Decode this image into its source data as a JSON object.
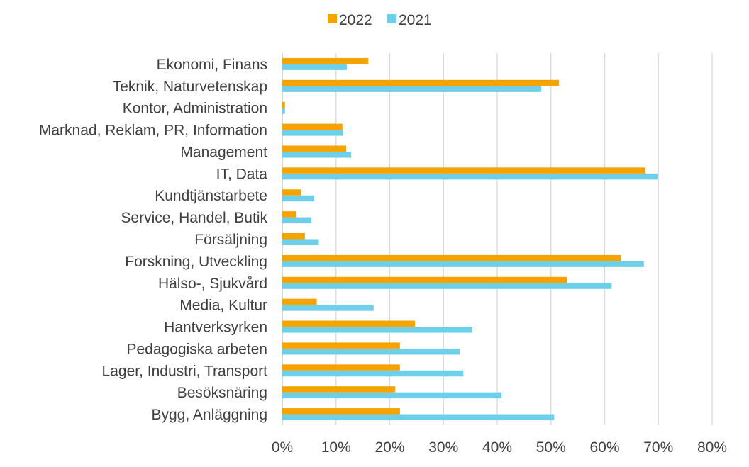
{
  "chart_data": {
    "type": "bar",
    "orientation": "horizontal",
    "title": "",
    "xlabel": "",
    "ylabel": "",
    "xlim": [
      0,
      80
    ],
    "x_ticks": [
      "0%",
      "10%",
      "20%",
      "30%",
      "40%",
      "50%",
      "60%",
      "70%",
      "80%"
    ],
    "grid": true,
    "legend_position": "top",
    "categories": [
      "Ekonomi, Finans",
      "Teknik, Naturvetenskap",
      "Kontor, Administration",
      "Marknad, Reklam, PR, Information",
      "Management",
      "IT, Data",
      "Kundtjänstarbete",
      "Service, Handel, Butik",
      "Försäljning",
      "Forskning, Utveckling",
      "Hälso-, Sjukvård",
      "Media, Kultur",
      "Hantverksyrken",
      "Pedagogiska arbeten",
      "Lager, Industri, Transport",
      "Besöksnäring",
      "Bygg, Anläggning"
    ],
    "series": [
      {
        "name": "2022",
        "color": "#f5a300",
        "values": [
          16,
          51.5,
          0.5,
          11.2,
          11.9,
          67.6,
          3.5,
          2.6,
          4.2,
          63.1,
          53,
          6.4,
          24.7,
          21.9,
          21.9,
          21,
          21.9
        ]
      },
      {
        "name": "2021",
        "color": "#6dcfe8",
        "values": [
          12,
          48.2,
          0.5,
          11.3,
          12.8,
          69.9,
          5.9,
          5.4,
          6.8,
          67.3,
          61.3,
          17,
          35.4,
          33,
          33.7,
          40.8,
          50.6
        ]
      }
    ]
  }
}
